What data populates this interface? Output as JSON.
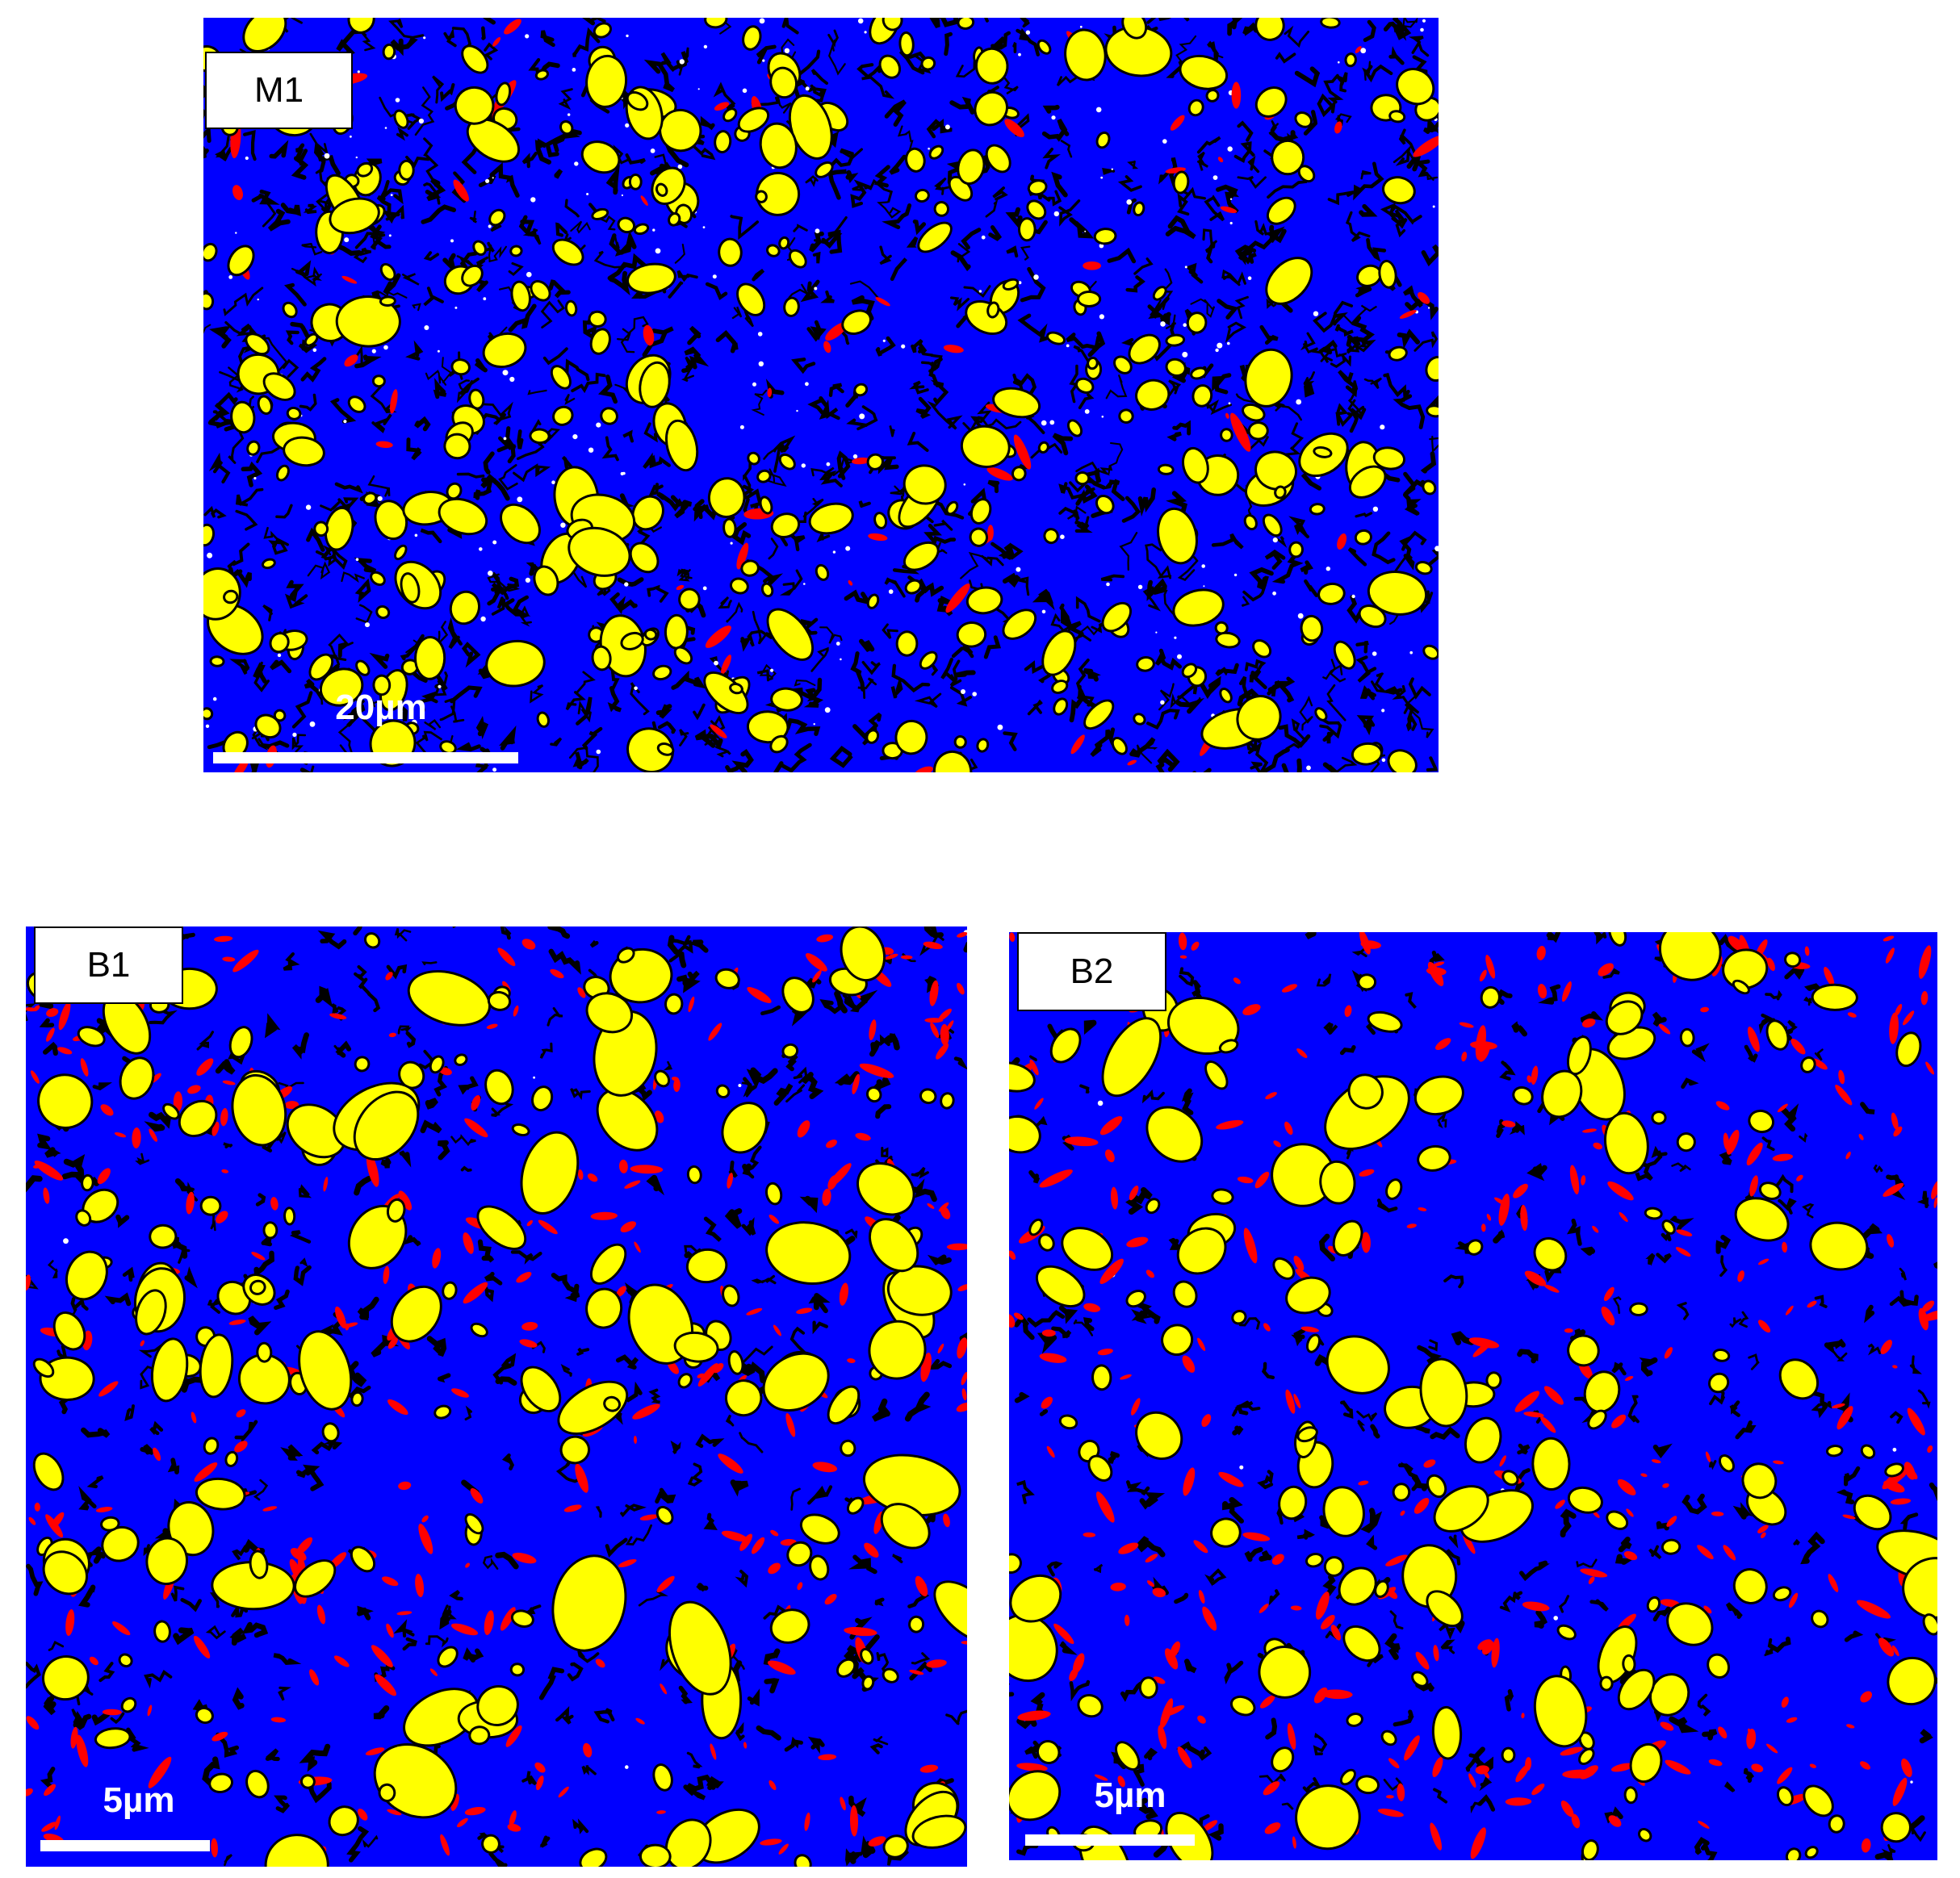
{
  "panels": {
    "m1": {
      "label": "M1",
      "scale": "20µm"
    },
    "b1": {
      "label": "B1",
      "scale": "5µm"
    },
    "b2": {
      "label": "B2",
      "scale": "5µm"
    }
  },
  "colors": {
    "matrix": "#0000ff",
    "phase_yellow": "#ffff00",
    "phase_red": "#ff0000",
    "boundary_black": "#000000",
    "unindexed_white": "#ffffff"
  }
}
